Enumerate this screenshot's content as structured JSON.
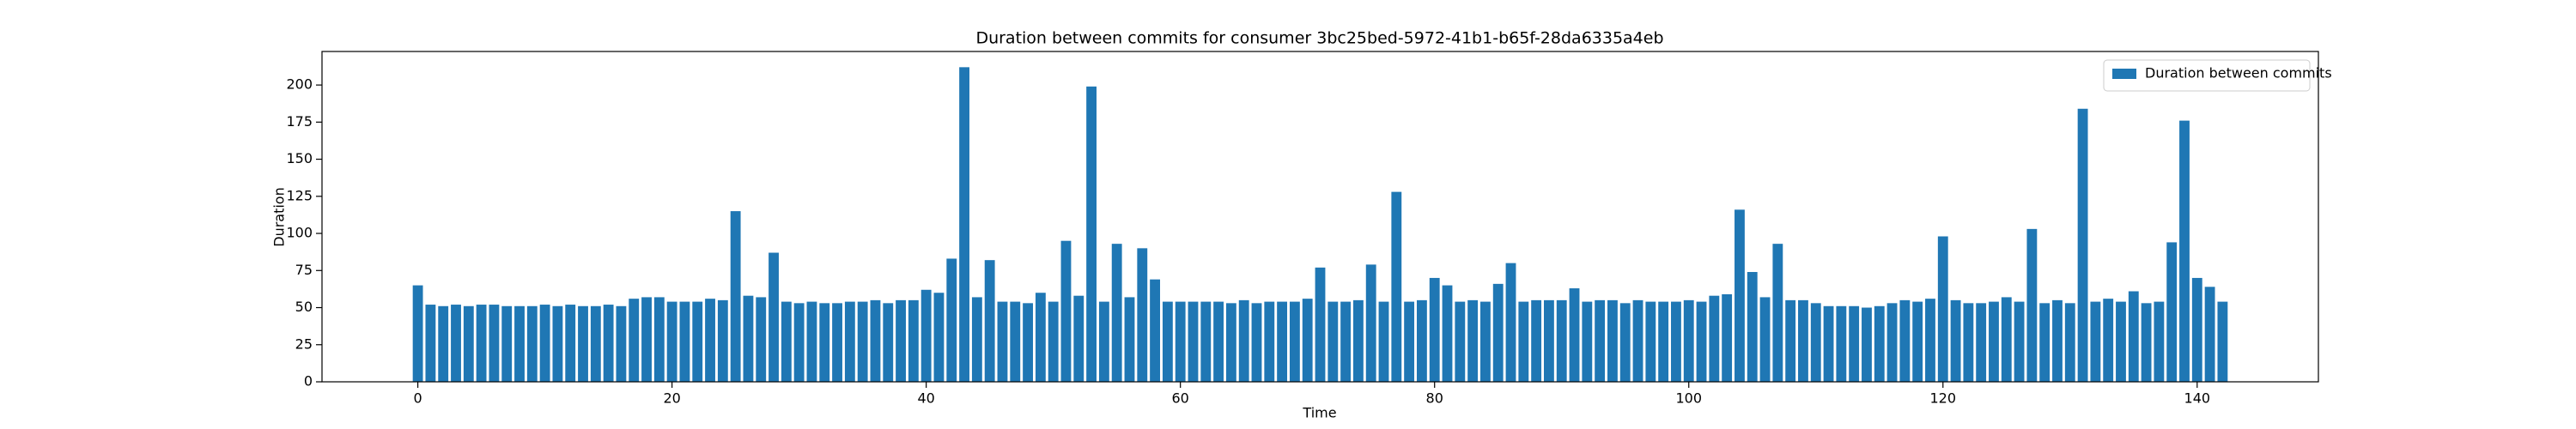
{
  "chart_data": {
    "type": "bar",
    "title": "Duration between commits for consumer 3bc25bed-5972-41b1-b65f-28da6335a4eb",
    "xlabel": "Time",
    "ylabel": "Duration",
    "x": [
      0,
      1,
      2,
      3,
      4,
      5,
      6,
      7,
      8,
      9,
      10,
      11,
      12,
      13,
      14,
      15,
      16,
      17,
      18,
      19,
      20,
      21,
      22,
      23,
      24,
      25,
      26,
      27,
      28,
      29,
      30,
      31,
      32,
      33,
      34,
      35,
      36,
      37,
      38,
      39,
      40,
      41,
      42,
      43,
      44,
      45,
      46,
      47,
      48,
      49,
      50,
      51,
      52,
      53,
      54,
      55,
      56,
      57,
      58,
      59,
      60,
      61,
      62,
      63,
      64,
      65,
      66,
      67,
      68,
      69,
      70,
      71,
      72,
      73,
      74,
      75,
      76,
      77,
      78,
      79,
      80,
      81,
      82,
      83,
      84,
      85,
      86,
      87,
      88,
      89,
      90,
      91,
      92,
      93,
      94,
      95,
      96,
      97,
      98,
      99,
      100,
      101,
      102,
      103,
      104,
      105,
      106,
      107,
      108,
      109,
      110,
      111,
      112,
      113,
      114,
      115,
      116,
      117,
      118,
      119,
      120,
      121,
      122,
      123,
      124,
      125,
      126,
      127,
      128,
      129,
      130,
      131,
      132,
      133,
      134,
      135,
      136,
      137,
      138,
      139,
      140,
      141,
      142
    ],
    "series": [
      {
        "name": "Duration between commits",
        "color": "#1f77b4",
        "values": [
          65,
          52,
          51,
          52,
          51,
          52,
          52,
          51,
          51,
          51,
          52,
          51,
          52,
          51,
          51,
          52,
          51,
          56,
          57,
          57,
          54,
          54,
          54,
          56,
          55,
          115,
          58,
          57,
          87,
          54,
          53,
          54,
          53,
          53,
          54,
          54,
          55,
          53,
          55,
          55,
          62,
          60,
          83,
          212,
          57,
          82,
          54,
          54,
          53,
          60,
          54,
          95,
          58,
          199,
          54,
          93,
          57,
          90,
          69,
          54,
          54,
          54,
          54,
          54,
          53,
          55,
          53,
          54,
          54,
          54,
          56,
          77,
          54,
          54,
          55,
          79,
          54,
          128,
          54,
          55,
          70,
          65,
          54,
          55,
          54,
          66,
          80,
          54,
          55,
          55,
          55,
          63,
          54,
          55,
          55,
          53,
          55,
          54,
          54,
          54,
          55,
          54,
          58,
          59,
          116,
          74,
          57,
          93,
          55,
          55,
          53,
          51,
          51,
          51,
          50,
          51,
          53,
          55,
          54,
          56,
          98,
          55,
          53,
          53,
          54,
          57,
          54,
          103,
          53,
          55,
          53,
          184,
          54,
          56,
          54,
          61,
          53,
          54,
          94,
          176,
          70,
          64,
          54
        ]
      }
    ],
    "xlim": [
      -7.54,
      149.54
    ],
    "ylim": [
      0,
      222.6
    ],
    "xticks": [
      0,
      20,
      40,
      60,
      80,
      100,
      120,
      140
    ],
    "yticks": [
      0,
      25,
      50,
      75,
      100,
      125,
      150,
      175,
      200
    ],
    "bar_width": 0.8,
    "legend": "upper right"
  }
}
